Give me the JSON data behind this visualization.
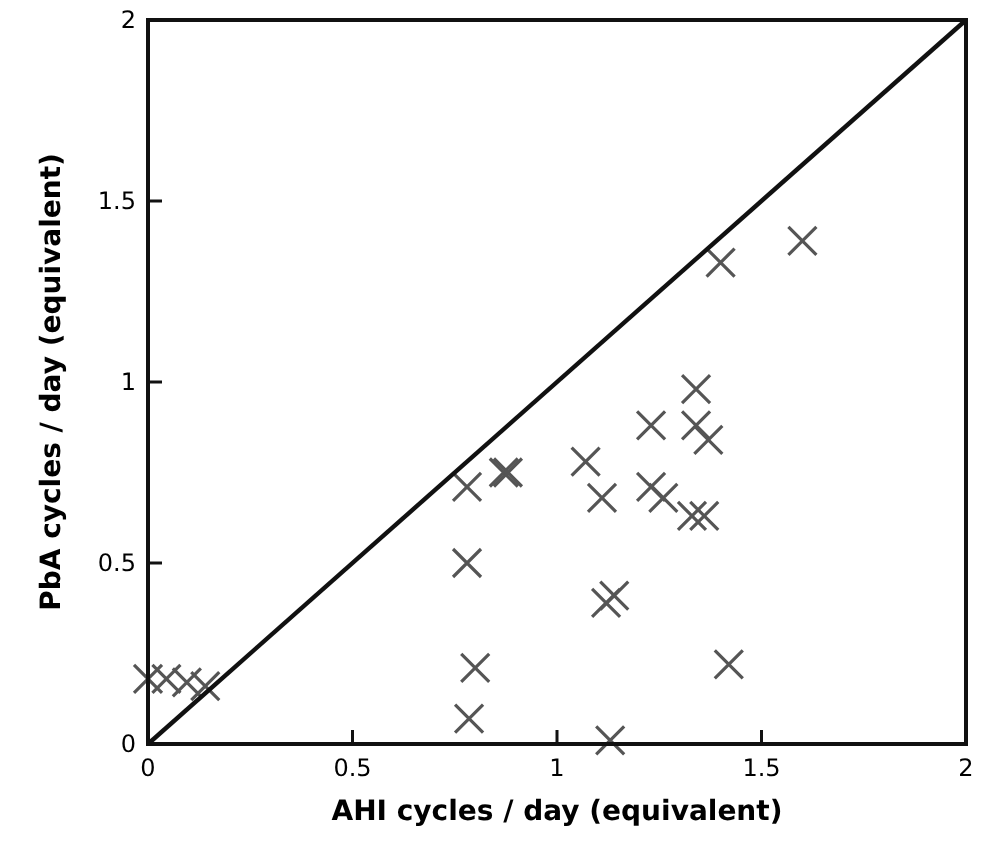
{
  "chart_data": {
    "type": "scatter",
    "xlabel": "AHI cycles / day (equivalent)",
    "ylabel": "PbA cycles / day (equivalent)",
    "xlim": [
      0,
      2
    ],
    "ylim": [
      0,
      2
    ],
    "xticks": [
      0,
      0.5,
      1,
      1.5,
      2
    ],
    "yticks": [
      0,
      0.5,
      1,
      1.5,
      2
    ],
    "grid": false,
    "marker": "cross",
    "series": [
      {
        "color": "#555555",
        "x": [
          0,
          0.045,
          0.095,
          0.14,
          0.78,
          0.78,
          0.8,
          0.785,
          0.87,
          0.88,
          1.07,
          1.11,
          1.12,
          1.14,
          1.13,
          1.23,
          1.23,
          1.26,
          1.34,
          1.34,
          1.37,
          1.33,
          1.36,
          1.4,
          1.6,
          1.42
        ],
        "values": [
          0.18,
          0.18,
          0.17,
          0.16,
          0.71,
          0.5,
          0.21,
          0.07,
          0.75,
          0.75,
          0.78,
          0.68,
          0.39,
          0.41,
          0.01,
          0.88,
          0.71,
          0.68,
          0.98,
          0.88,
          0.84,
          0.63,
          0.63,
          1.33,
          1.39,
          0.22
        ]
      },
      {
        "type": "line",
        "color": "#111111",
        "line_style": "solid",
        "marker": "none",
        "x": [
          0,
          2
        ],
        "values": [
          0,
          2
        ]
      }
    ]
  }
}
